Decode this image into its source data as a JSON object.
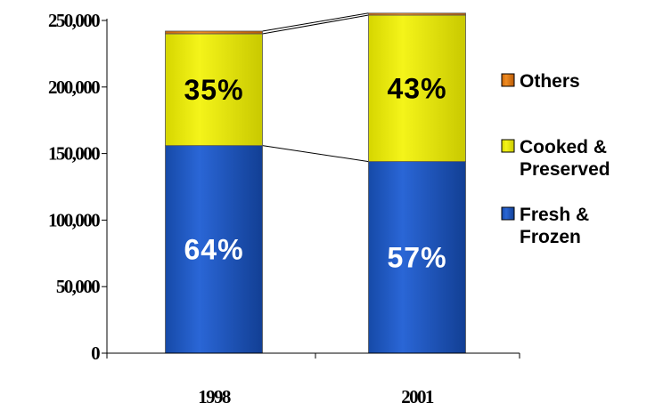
{
  "chart_data": {
    "type": "bar",
    "stacked": true,
    "categories": [
      "1998",
      "2001"
    ],
    "ylim": [
      0,
      250000
    ],
    "y_ticks": [
      0,
      50000,
      100000,
      150000,
      200000,
      250000
    ],
    "y_tick_labels": [
      "0",
      "50,000",
      "100,000",
      "150,000",
      "200,000",
      "250,000"
    ],
    "series": [
      {
        "name": "Fresh & Frozen",
        "legend_lines": [
          "Fresh &",
          "Frozen"
        ],
        "values": [
          156000,
          144000
        ],
        "percent_labels": [
          "64%",
          "57%"
        ],
        "color": "#1f5bc9",
        "label_color": "#ffffff"
      },
      {
        "name": "Cooked & Preserved",
        "legend_lines": [
          "Cooked &",
          "Preserved"
        ],
        "values": [
          84000,
          110000
        ],
        "percent_labels": [
          "35%",
          "43%"
        ],
        "color": "#e8e800",
        "label_color": "#000000"
      },
      {
        "name": "Others",
        "legend_lines": [
          "Others"
        ],
        "values": [
          2000,
          1500
        ],
        "percent_labels": [
          "",
          ""
        ],
        "color": "#e07a10",
        "label_color": "#000000"
      }
    ],
    "legend_position": "right",
    "legend_order": [
      "Others",
      "Cooked & Preserved",
      "Fresh & Frozen"
    ],
    "series_connector_lines": true,
    "grid": false
  }
}
